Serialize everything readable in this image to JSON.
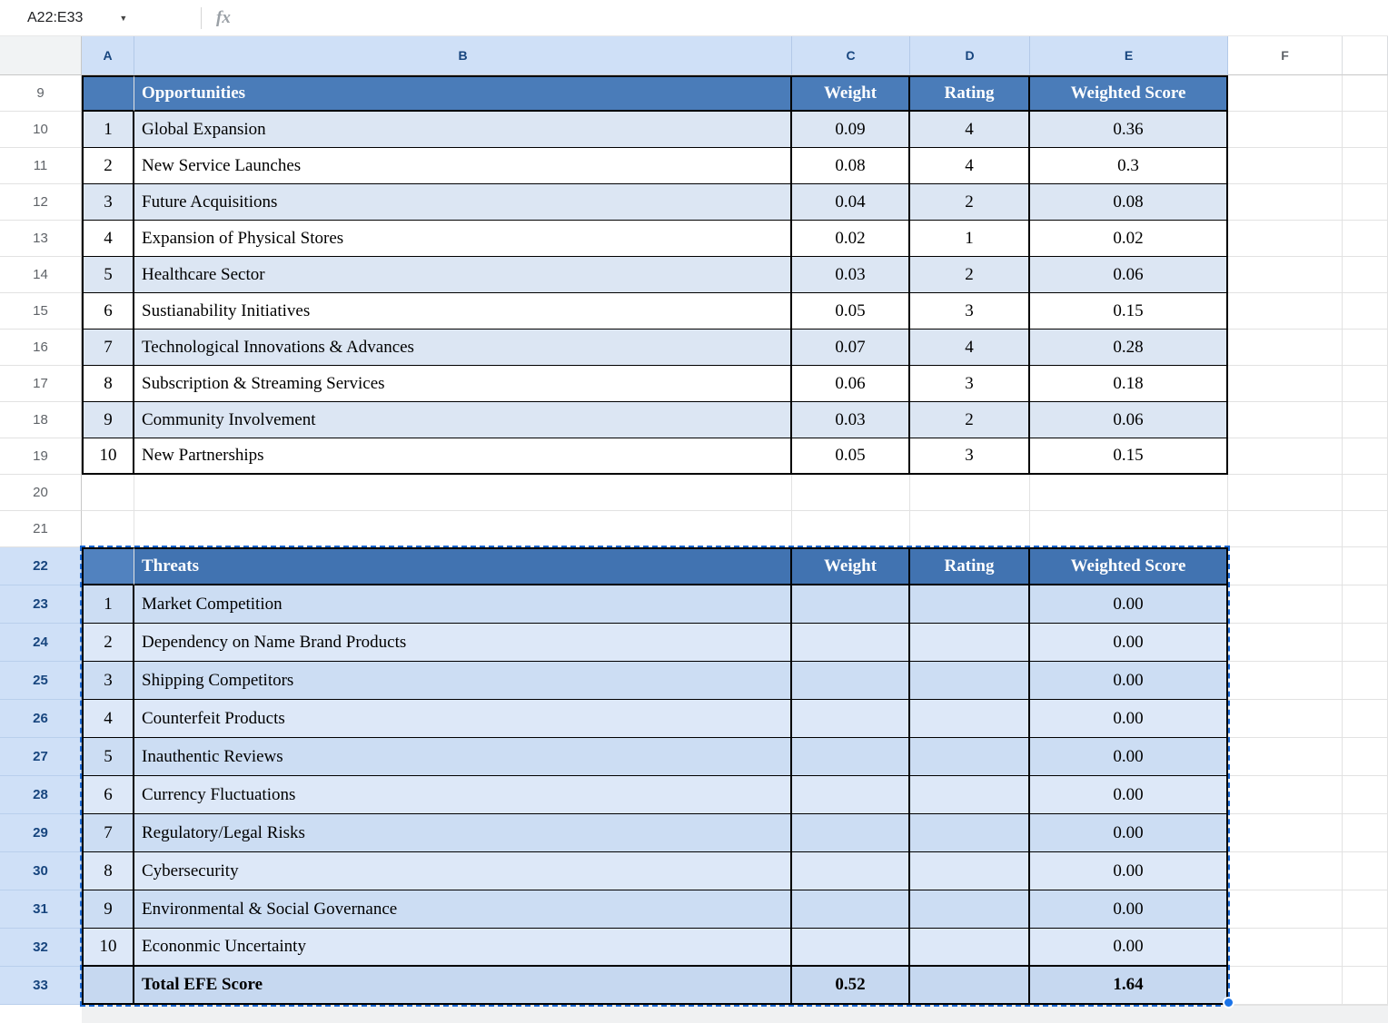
{
  "formula_bar": {
    "cell_reference": "A22:E33",
    "fx": "fx"
  },
  "col_headers": [
    "A",
    "B",
    "C",
    "D",
    "E",
    "F"
  ],
  "row_nums": [
    "9",
    "10",
    "11",
    "12",
    "13",
    "14",
    "15",
    "16",
    "17",
    "18",
    "19",
    "20",
    "21",
    "22",
    "23",
    "24",
    "25",
    "26",
    "27",
    "28",
    "29",
    "30",
    "31",
    "32",
    "33"
  ],
  "colors": {
    "accent": "#1a73e8",
    "table_header_blue": "#4a7cb9",
    "band_light_blue": "#dce6f3",
    "selection_header": "#cfe0f7"
  },
  "opportunities": {
    "title": "Opportunities",
    "headers": {
      "weight": "Weight",
      "rating": "Rating",
      "score": "Weighted Score"
    },
    "rows": [
      {
        "n": "1",
        "label": "Global Expansion",
        "weight": "0.09",
        "rating": "4",
        "score": "0.36"
      },
      {
        "n": "2",
        "label": "New Service Launches",
        "weight": "0.08",
        "rating": "4",
        "score": "0.3"
      },
      {
        "n": "3",
        "label": "Future Acquisitions",
        "weight": "0.04",
        "rating": "2",
        "score": "0.08"
      },
      {
        "n": "4",
        "label": "Expansion of Physical Stores",
        "weight": "0.02",
        "rating": "1",
        "score": "0.02"
      },
      {
        "n": "5",
        "label": "Healthcare Sector",
        "weight": "0.03",
        "rating": "2",
        "score": "0.06"
      },
      {
        "n": "6",
        "label": "Sustianability Initiatives",
        "weight": "0.05",
        "rating": "3",
        "score": "0.15"
      },
      {
        "n": "7",
        "label": "Technological Innovations & Advances",
        "weight": "0.07",
        "rating": "4",
        "score": "0.28"
      },
      {
        "n": "8",
        "label": "Subscription & Streaming Services",
        "weight": "0.06",
        "rating": "3",
        "score": "0.18"
      },
      {
        "n": "9",
        "label": "Community Involvement",
        "weight": "0.03",
        "rating": "2",
        "score": "0.06"
      },
      {
        "n": "10",
        "label": "New Partnerships",
        "weight": "0.05",
        "rating": "3",
        "score": "0.15"
      }
    ]
  },
  "threats": {
    "title": "Threats",
    "headers": {
      "weight": "Weight",
      "rating": "Rating",
      "score": "Weighted Score"
    },
    "rows": [
      {
        "n": "1",
        "label": "Market Competition",
        "score": "0.00"
      },
      {
        "n": "2",
        "label": "Dependency on Name Brand Products",
        "score": "0.00"
      },
      {
        "n": "3",
        "label": "Shipping Competitors",
        "score": "0.00"
      },
      {
        "n": "4",
        "label": "Counterfeit Products",
        "score": "0.00"
      },
      {
        "n": "5",
        "label": "Inauthentic Reviews",
        "score": "0.00"
      },
      {
        "n": "6",
        "label": "Currency Fluctuations",
        "score": "0.00"
      },
      {
        "n": "7",
        "label": "Regulatory/Legal Risks",
        "score": "0.00"
      },
      {
        "n": "8",
        "label": "Cybersecurity",
        "score": "0.00"
      },
      {
        "n": "9",
        "label": "Environmental & Social Governance",
        "score": "0.00"
      },
      {
        "n": "10",
        "label": "Econonmic Uncertainty",
        "score": "0.00"
      }
    ],
    "total": {
      "label": "Total EFE Score",
      "weight": "0.52",
      "score": "1.64"
    }
  }
}
